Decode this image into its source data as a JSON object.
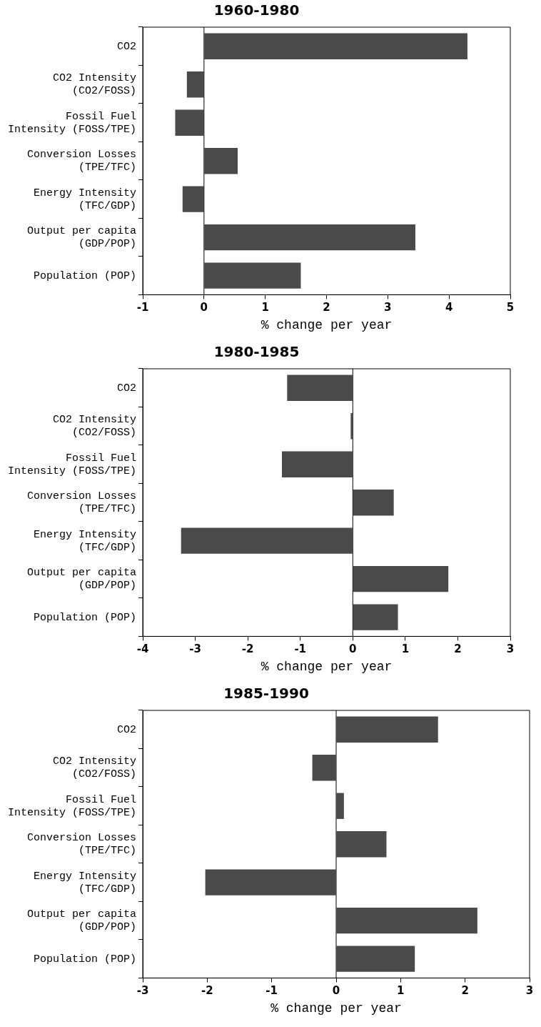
{
  "chart_data": [
    {
      "type": "bar",
      "orientation": "horizontal",
      "title": "1960-1980",
      "xlabel": "% change per year",
      "categories": [
        "CO2",
        "CO2 Intensity\n(CO2/FOSS)",
        "Fossil Fuel\nIntensity (FOSS/TPE)",
        "Conversion Losses\n(TPE/TFC)",
        "Energy Intensity\n(TFC/GDP)",
        "Output per capita\n(GDP/POP)",
        "Population (POP)"
      ],
      "values": [
        4.3,
        -0.28,
        -0.47,
        0.55,
        -0.35,
        3.45,
        1.58
      ],
      "color": "#4a4a4a",
      "ref_lines": [
        {
          "axis": "x",
          "value": 0
        }
      ],
      "xlim": [
        -1,
        5
      ],
      "xticks": [
        -1,
        0,
        1,
        2,
        3,
        4,
        5
      ],
      "grid": false,
      "legend": false
    },
    {
      "type": "bar",
      "orientation": "horizontal",
      "title": "1980-1985",
      "xlabel": "% change per year",
      "categories": [
        "CO2",
        "CO2 Intensity\n(CO2/FOSS)",
        "Fossil Fuel\nIntensity (FOSS/TPE)",
        "Conversion Losses\n(TPE/TFC)",
        "Energy Intensity\n(TFC/GDP)",
        "Output per capita\n(GDP/POP)",
        "Population (POP)"
      ],
      "values": [
        -1.25,
        -0.04,
        -1.35,
        0.78,
        -3.27,
        1.82,
        0.86
      ],
      "color": "#4a4a4a",
      "ref_lines": [
        {
          "axis": "x",
          "value": 0
        }
      ],
      "xlim": [
        -4,
        3
      ],
      "xticks": [
        -4,
        -3,
        -2,
        -1,
        0,
        1,
        2,
        3
      ],
      "grid": false,
      "legend": false
    },
    {
      "type": "bar",
      "orientation": "horizontal",
      "title": "1985-1990",
      "xlabel": "% change per year",
      "categories": [
        "CO2",
        "CO2 Intensity\n(CO2/FOSS)",
        "Fossil Fuel\nIntensity (FOSS/TPE)",
        "Conversion Losses\n(TPE/TFC)",
        "Energy Intensity\n(TFC/GDP)",
        "Output per capita\n(GDP/POP)",
        "Population (POP)"
      ],
      "values": [
        1.58,
        -0.37,
        0.12,
        0.78,
        -2.03,
        2.19,
        1.22
      ],
      "color": "#4a4a4a",
      "ref_lines": [
        {
          "axis": "x",
          "value": 0
        }
      ],
      "xlim": [
        -3,
        3
      ],
      "xticks": [
        -3,
        -2,
        -1,
        0,
        1,
        2,
        3
      ],
      "grid": false,
      "legend": false
    }
  ]
}
